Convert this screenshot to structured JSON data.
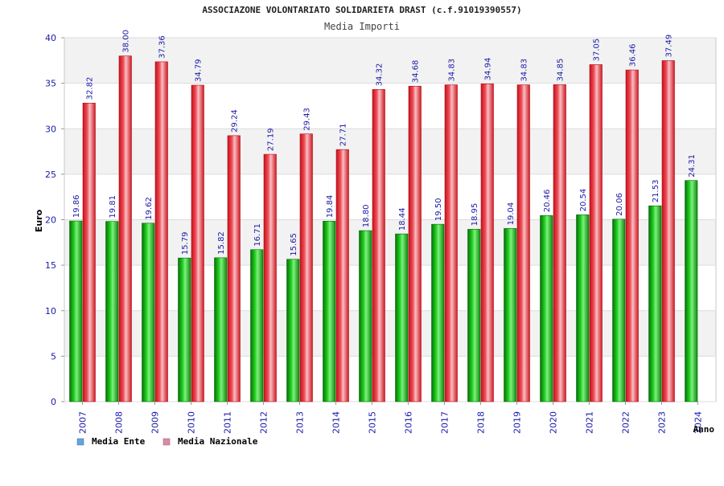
{
  "chart_data": {
    "type": "bar",
    "title": "ASSOCIAZONE VOLONTARIATO SOLIDARIETA DRAST (c.f.91019390557)",
    "subtitle": "Media Importi",
    "xlabel": "Anno",
    "ylabel": "Euro",
    "ylim": [
      0,
      40
    ],
    "yticks": [
      "0",
      "5",
      "10",
      "15",
      "20",
      "25",
      "30",
      "35",
      "40"
    ],
    "categories": [
      "2007",
      "2008",
      "2009",
      "2010",
      "2011",
      "2012",
      "2013",
      "2014",
      "2015",
      "2016",
      "2017",
      "2018",
      "2019",
      "2020",
      "2021",
      "2022",
      "2023",
      "2024"
    ],
    "series": [
      {
        "name": "Media Ente",
        "color": "#1aa61a",
        "legend_color": "#66a3e0",
        "values": [
          19.86,
          19.81,
          19.62,
          15.79,
          15.82,
          16.71,
          15.65,
          19.84,
          18.8,
          18.44,
          19.5,
          18.95,
          19.04,
          20.46,
          20.54,
          20.06,
          21.53,
          24.31
        ],
        "labels": [
          "19.86",
          "19.81",
          "19.62",
          "15.79",
          "15.82",
          "16.71",
          "15.65",
          "19.84",
          "18.80",
          "18.44",
          "19.50",
          "18.95",
          "19.04",
          "20.46",
          "20.54",
          "20.06",
          "21.53",
          "24.31"
        ]
      },
      {
        "name": "Media Nazionale",
        "color": "#e8202a",
        "legend_color": "#d98aa8",
        "values": [
          32.82,
          38.0,
          37.36,
          34.79,
          29.24,
          27.19,
          29.43,
          27.71,
          34.32,
          34.68,
          34.83,
          34.94,
          34.83,
          34.85,
          37.05,
          36.46,
          37.49,
          null
        ],
        "labels": [
          "32.82",
          "38.00",
          "37.36",
          "34.79",
          "29.24",
          "27.19",
          "29.43",
          "27.71",
          "34.32",
          "34.68",
          "34.83",
          "34.94",
          "34.83",
          "34.85",
          "37.05",
          "36.46",
          "37.49",
          null
        ]
      }
    ],
    "grid": true,
    "legend_position": "bottom-left"
  }
}
